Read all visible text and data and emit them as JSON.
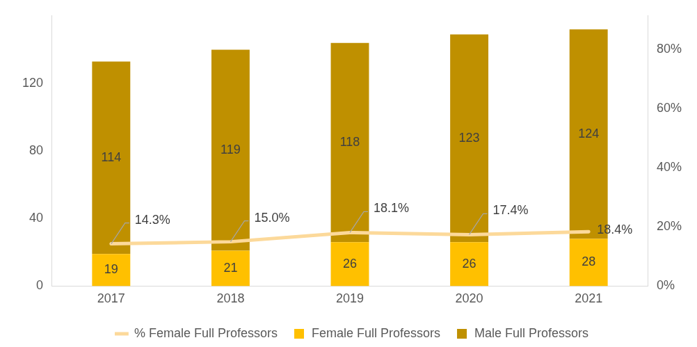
{
  "chart_data": {
    "type": "bar",
    "stacked": true,
    "categories": [
      "2017",
      "2018",
      "2019",
      "2020",
      "2021"
    ],
    "series": [
      {
        "name": "Female Full Professors",
        "color": "#ffc000",
        "values": [
          19,
          21,
          26,
          26,
          28
        ],
        "value_labels": [
          "19",
          "21",
          "26",
          "26",
          "28"
        ]
      },
      {
        "name": "Male Full Professors",
        "color": "#bf9000",
        "values": [
          114,
          119,
          118,
          123,
          124
        ],
        "value_labels": [
          "114",
          "119",
          "118",
          "123",
          "124"
        ]
      },
      {
        "name": "% Female Full Professors",
        "type": "line",
        "axis": "y2",
        "color": "#fcd99a",
        "marker": "none",
        "values": [
          14.3,
          15.0,
          18.1,
          17.4,
          18.4
        ],
        "value_labels": [
          "14.3%",
          "15.0%",
          "18.1%",
          "17.4%",
          "18.4%"
        ]
      }
    ],
    "ylim": [
      0,
      160
    ],
    "yticks": [
      0,
      40,
      80,
      120
    ],
    "y2lim": [
      0,
      91.4
    ],
    "y2ticks": [
      {
        "value": 0,
        "label": "0%"
      },
      {
        "value": 20,
        "label": "20%"
      },
      {
        "value": 40,
        "label": "40%"
      },
      {
        "value": 60,
        "label": "60%"
      },
      {
        "value": 80,
        "label": "80%"
      }
    ],
    "grid": false,
    "legend": "bottom"
  }
}
